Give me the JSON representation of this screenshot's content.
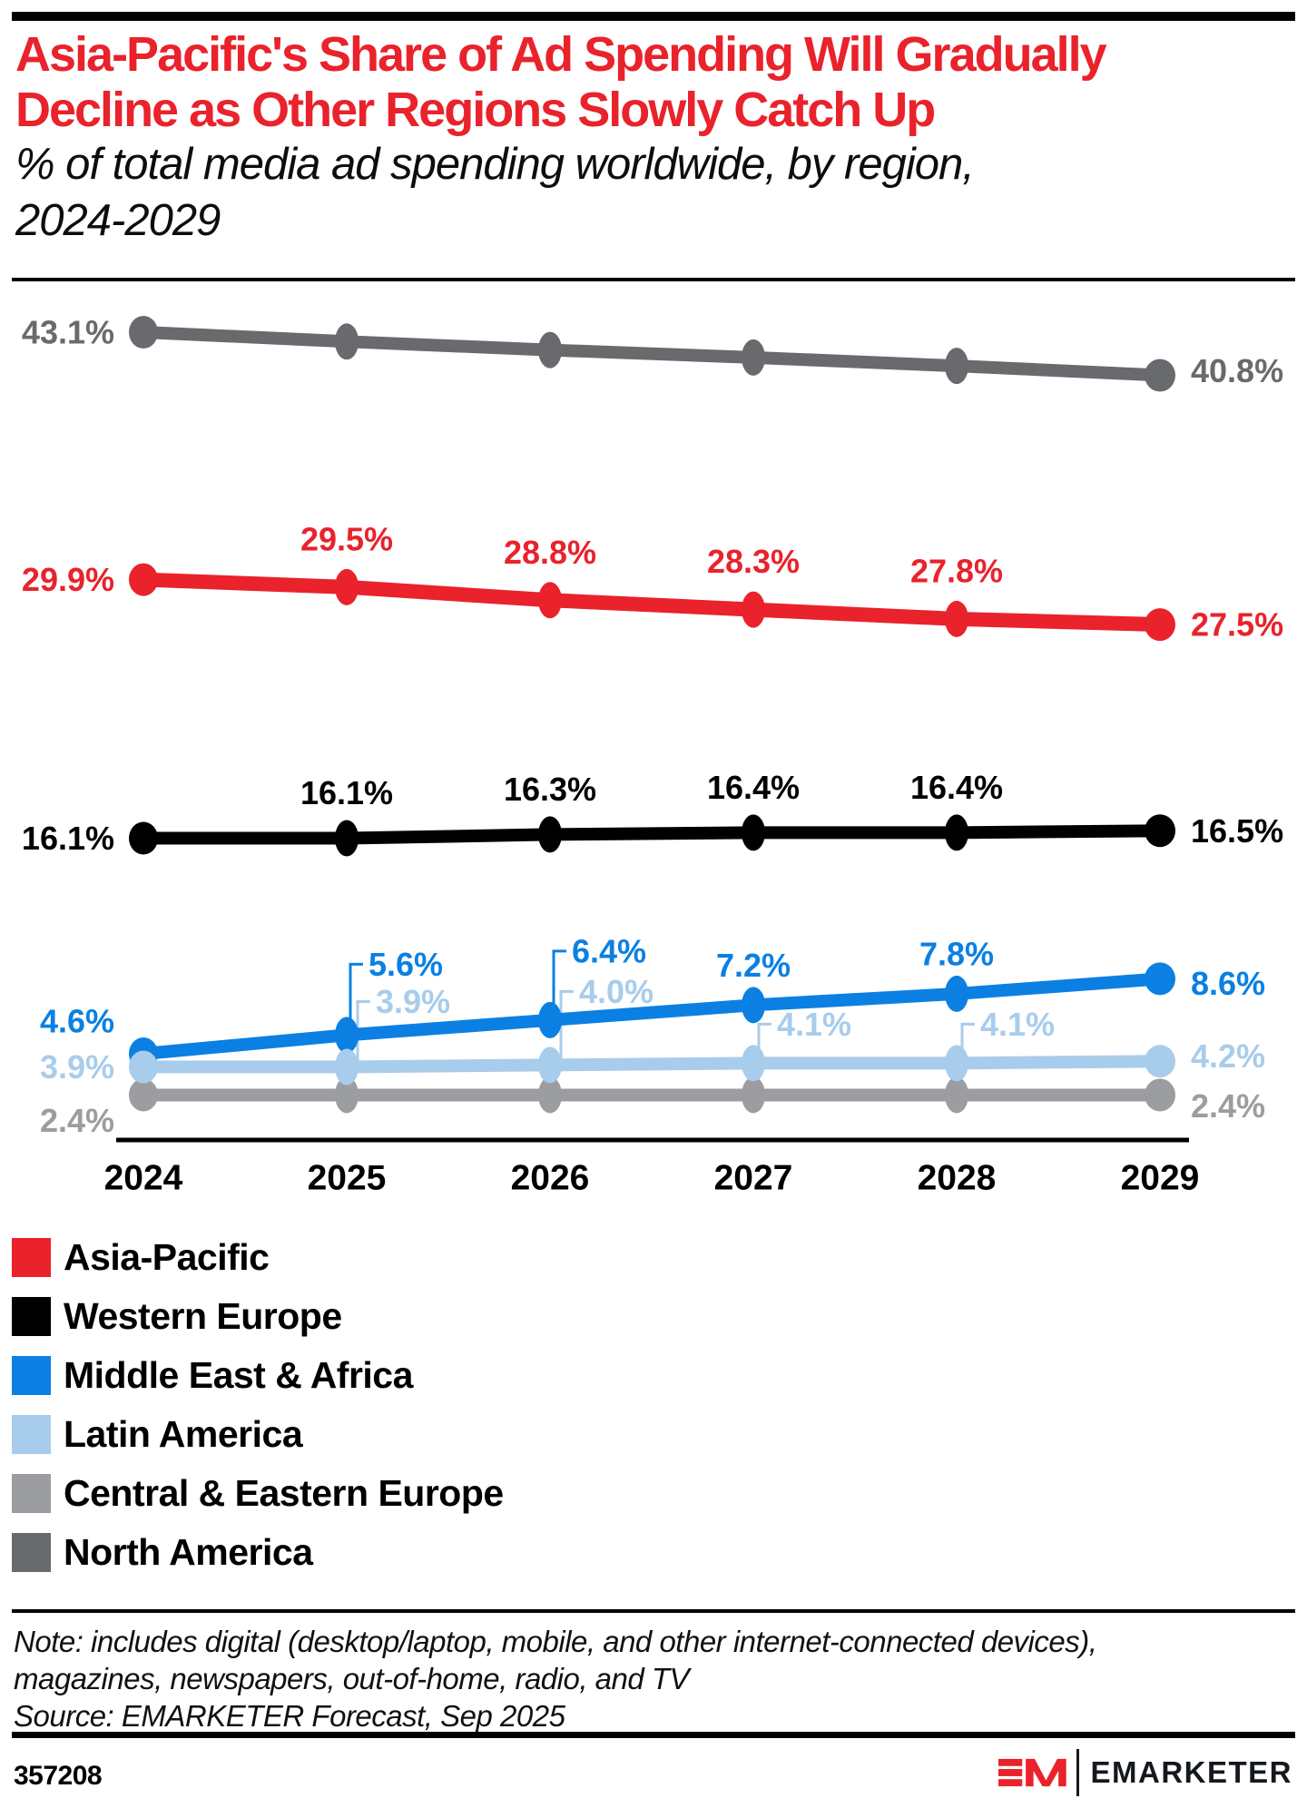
{
  "header": {
    "title_lines": [
      "Asia-Pacific's Share of Ad Spending Will Gradually",
      "Decline as Other Regions Slowly Catch Up"
    ],
    "subtitle_lines": [
      "% of total media ad spending worldwide, by region,",
      "2024-2029"
    ],
    "title_color": "#E9222B"
  },
  "chart_data": {
    "type": "line",
    "categories": [
      "2024",
      "2025",
      "2026",
      "2027",
      "2028",
      "2029"
    ],
    "unit": "%",
    "xlabel": "",
    "ylabel": "% of total media ad spending worldwide",
    "ylim": [
      0,
      45
    ],
    "grid": false,
    "series": [
      {
        "name": "Asia-Pacific",
        "color": "#E9222B",
        "values": [
          29.9,
          29.5,
          28.8,
          28.3,
          27.8,
          27.5
        ],
        "labels": [
          "29.9%",
          "29.5%",
          "28.8%",
          "28.3%",
          "27.8%",
          "27.5%"
        ],
        "placements": [
          "left",
          "above:53",
          "above:53",
          "above:53",
          "above:53",
          "right:0"
        ]
      },
      {
        "name": "Western Europe",
        "color": "#000000",
        "values": [
          16.1,
          16.1,
          16.3,
          16.4,
          16.4,
          16.5
        ],
        "labels": [
          "16.1%",
          "16.1%",
          "16.3%",
          "16.4%",
          "16.4%",
          "16.5%"
        ],
        "placements": [
          "left",
          "above:50",
          "above:50",
          "above:50",
          "above:50",
          "right:0"
        ]
      },
      {
        "name": "Middle East & Africa",
        "color": "#0B80E2",
        "values": [
          4.6,
          5.6,
          6.4,
          7.2,
          7.8,
          8.6
        ],
        "labels": [
          "4.6%",
          "5.6%",
          "6.4%",
          "7.2%",
          "7.8%",
          "8.6%"
        ],
        "placements": [
          "left-up",
          "leader:78:4",
          "leader:76:4",
          "above:44",
          "above:44",
          "right:5"
        ]
      },
      {
        "name": "Latin America",
        "color": "#A8CCEC",
        "values": [
          3.9,
          3.9,
          4.0,
          4.1,
          4.1,
          4.2
        ],
        "labels": [
          "3.9%",
          "3.9%",
          "4.0%",
          "4.1%",
          "4.1%",
          "4.2%"
        ],
        "placements": [
          "left",
          "leader:72:12",
          "leader:81:12",
          "leader:43:6",
          "leader:43:6",
          "right:-6"
        ]
      },
      {
        "name": "Central & Eastern Europe",
        "color": "#9B9DA0",
        "values": [
          2.4,
          2.4,
          2.4,
          2.4,
          2.4,
          2.4
        ],
        "labels": [
          "2.4%",
          "",
          "",
          "",
          "",
          "2.4%"
        ],
        "placements": [
          "left-down",
          "",
          "",
          "",
          "",
          "right:12"
        ]
      },
      {
        "name": "North America",
        "color": "#696A6D",
        "values": [
          43.1,
          42.6,
          42.15,
          41.75,
          41.3,
          40.8
        ],
        "labels": [
          "43.1%",
          "",
          "",
          "",
          "",
          "40.8%"
        ],
        "placements": [
          "left",
          "",
          "",
          "",
          "",
          "right:-5"
        ]
      }
    ],
    "legend_position": "bottom-left"
  },
  "notes": {
    "note_lines": [
      "Note: includes digital (desktop/laptop, mobile, and other internet-connected devices),",
      "magazines, newspapers, out-of-home, radio, and TV"
    ],
    "source_line": "Source: EMARKETER Forecast, Sep 2025"
  },
  "footer": {
    "chart_id": "357208",
    "brand": "EMARKETER",
    "brand_red": "#E9222B"
  }
}
